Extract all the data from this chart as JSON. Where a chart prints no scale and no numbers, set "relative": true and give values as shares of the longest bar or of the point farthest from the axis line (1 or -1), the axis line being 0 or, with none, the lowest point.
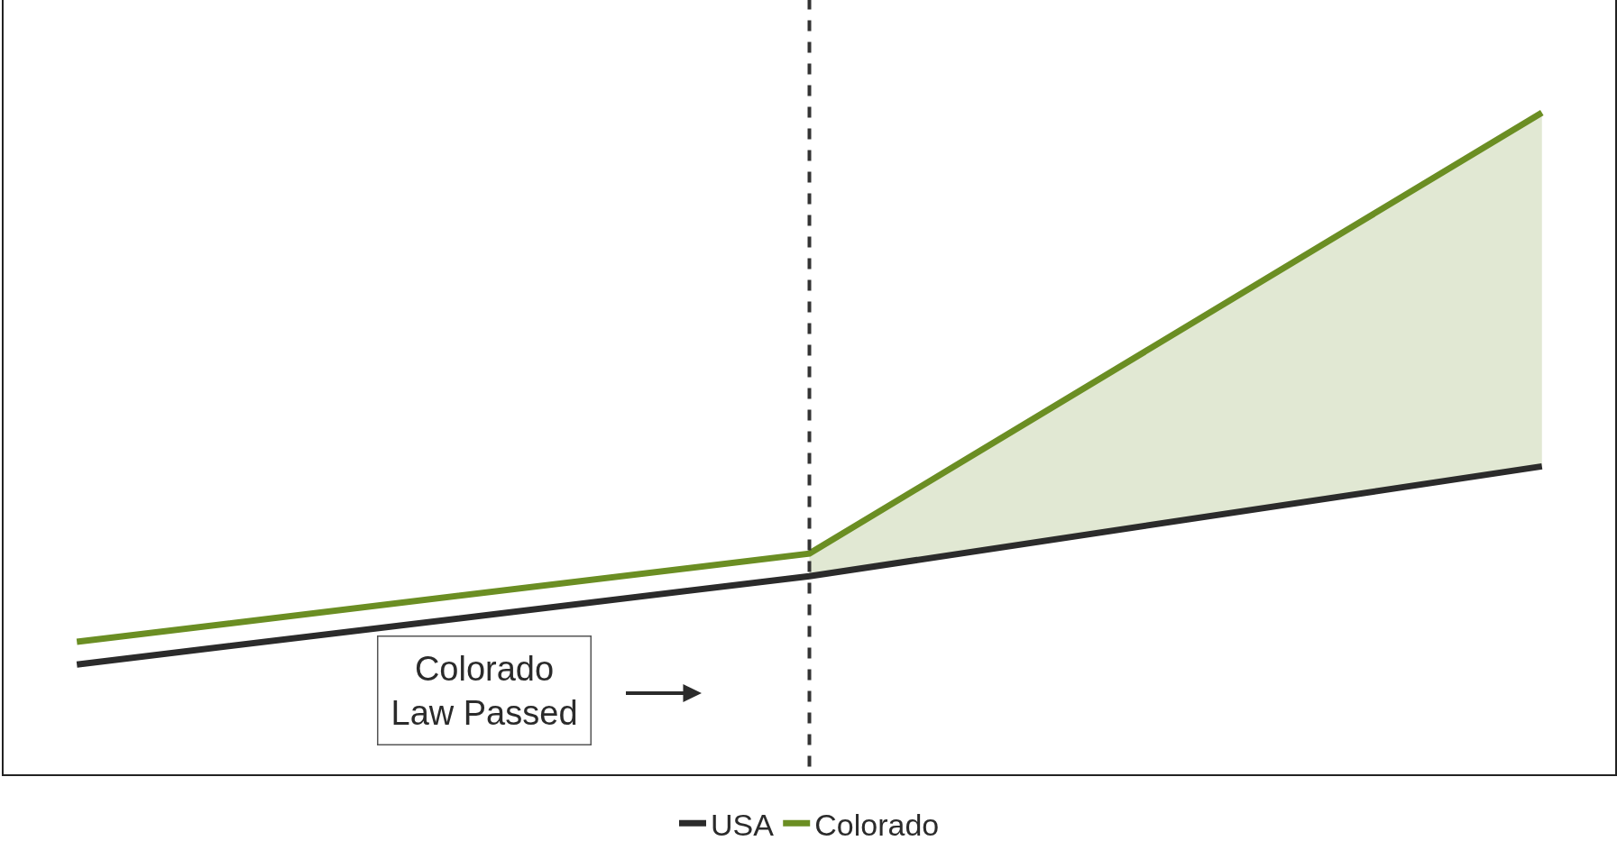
{
  "chart_data": {
    "type": "line",
    "relative": true,
    "categories": [
      null,
      null,
      null
    ],
    "series": [
      {
        "name": "USA",
        "color": "#2b2b2b",
        "values": [
          0,
          0.16,
          0.359
        ]
      },
      {
        "name": "Colorado",
        "color": "#6b8e23",
        "values": [
          0.041,
          0.201,
          1
        ],
        "lower": [
          null,
          0.16,
          0.359
        ],
        "upper": [
          null,
          0.201,
          1
        ]
      }
    ],
    "annotations": [
      "Colorado\nLaw Passed"
    ],
    "grid": false,
    "legend": "bottom",
    "marker": "none",
    "line_style": "solid"
  }
}
